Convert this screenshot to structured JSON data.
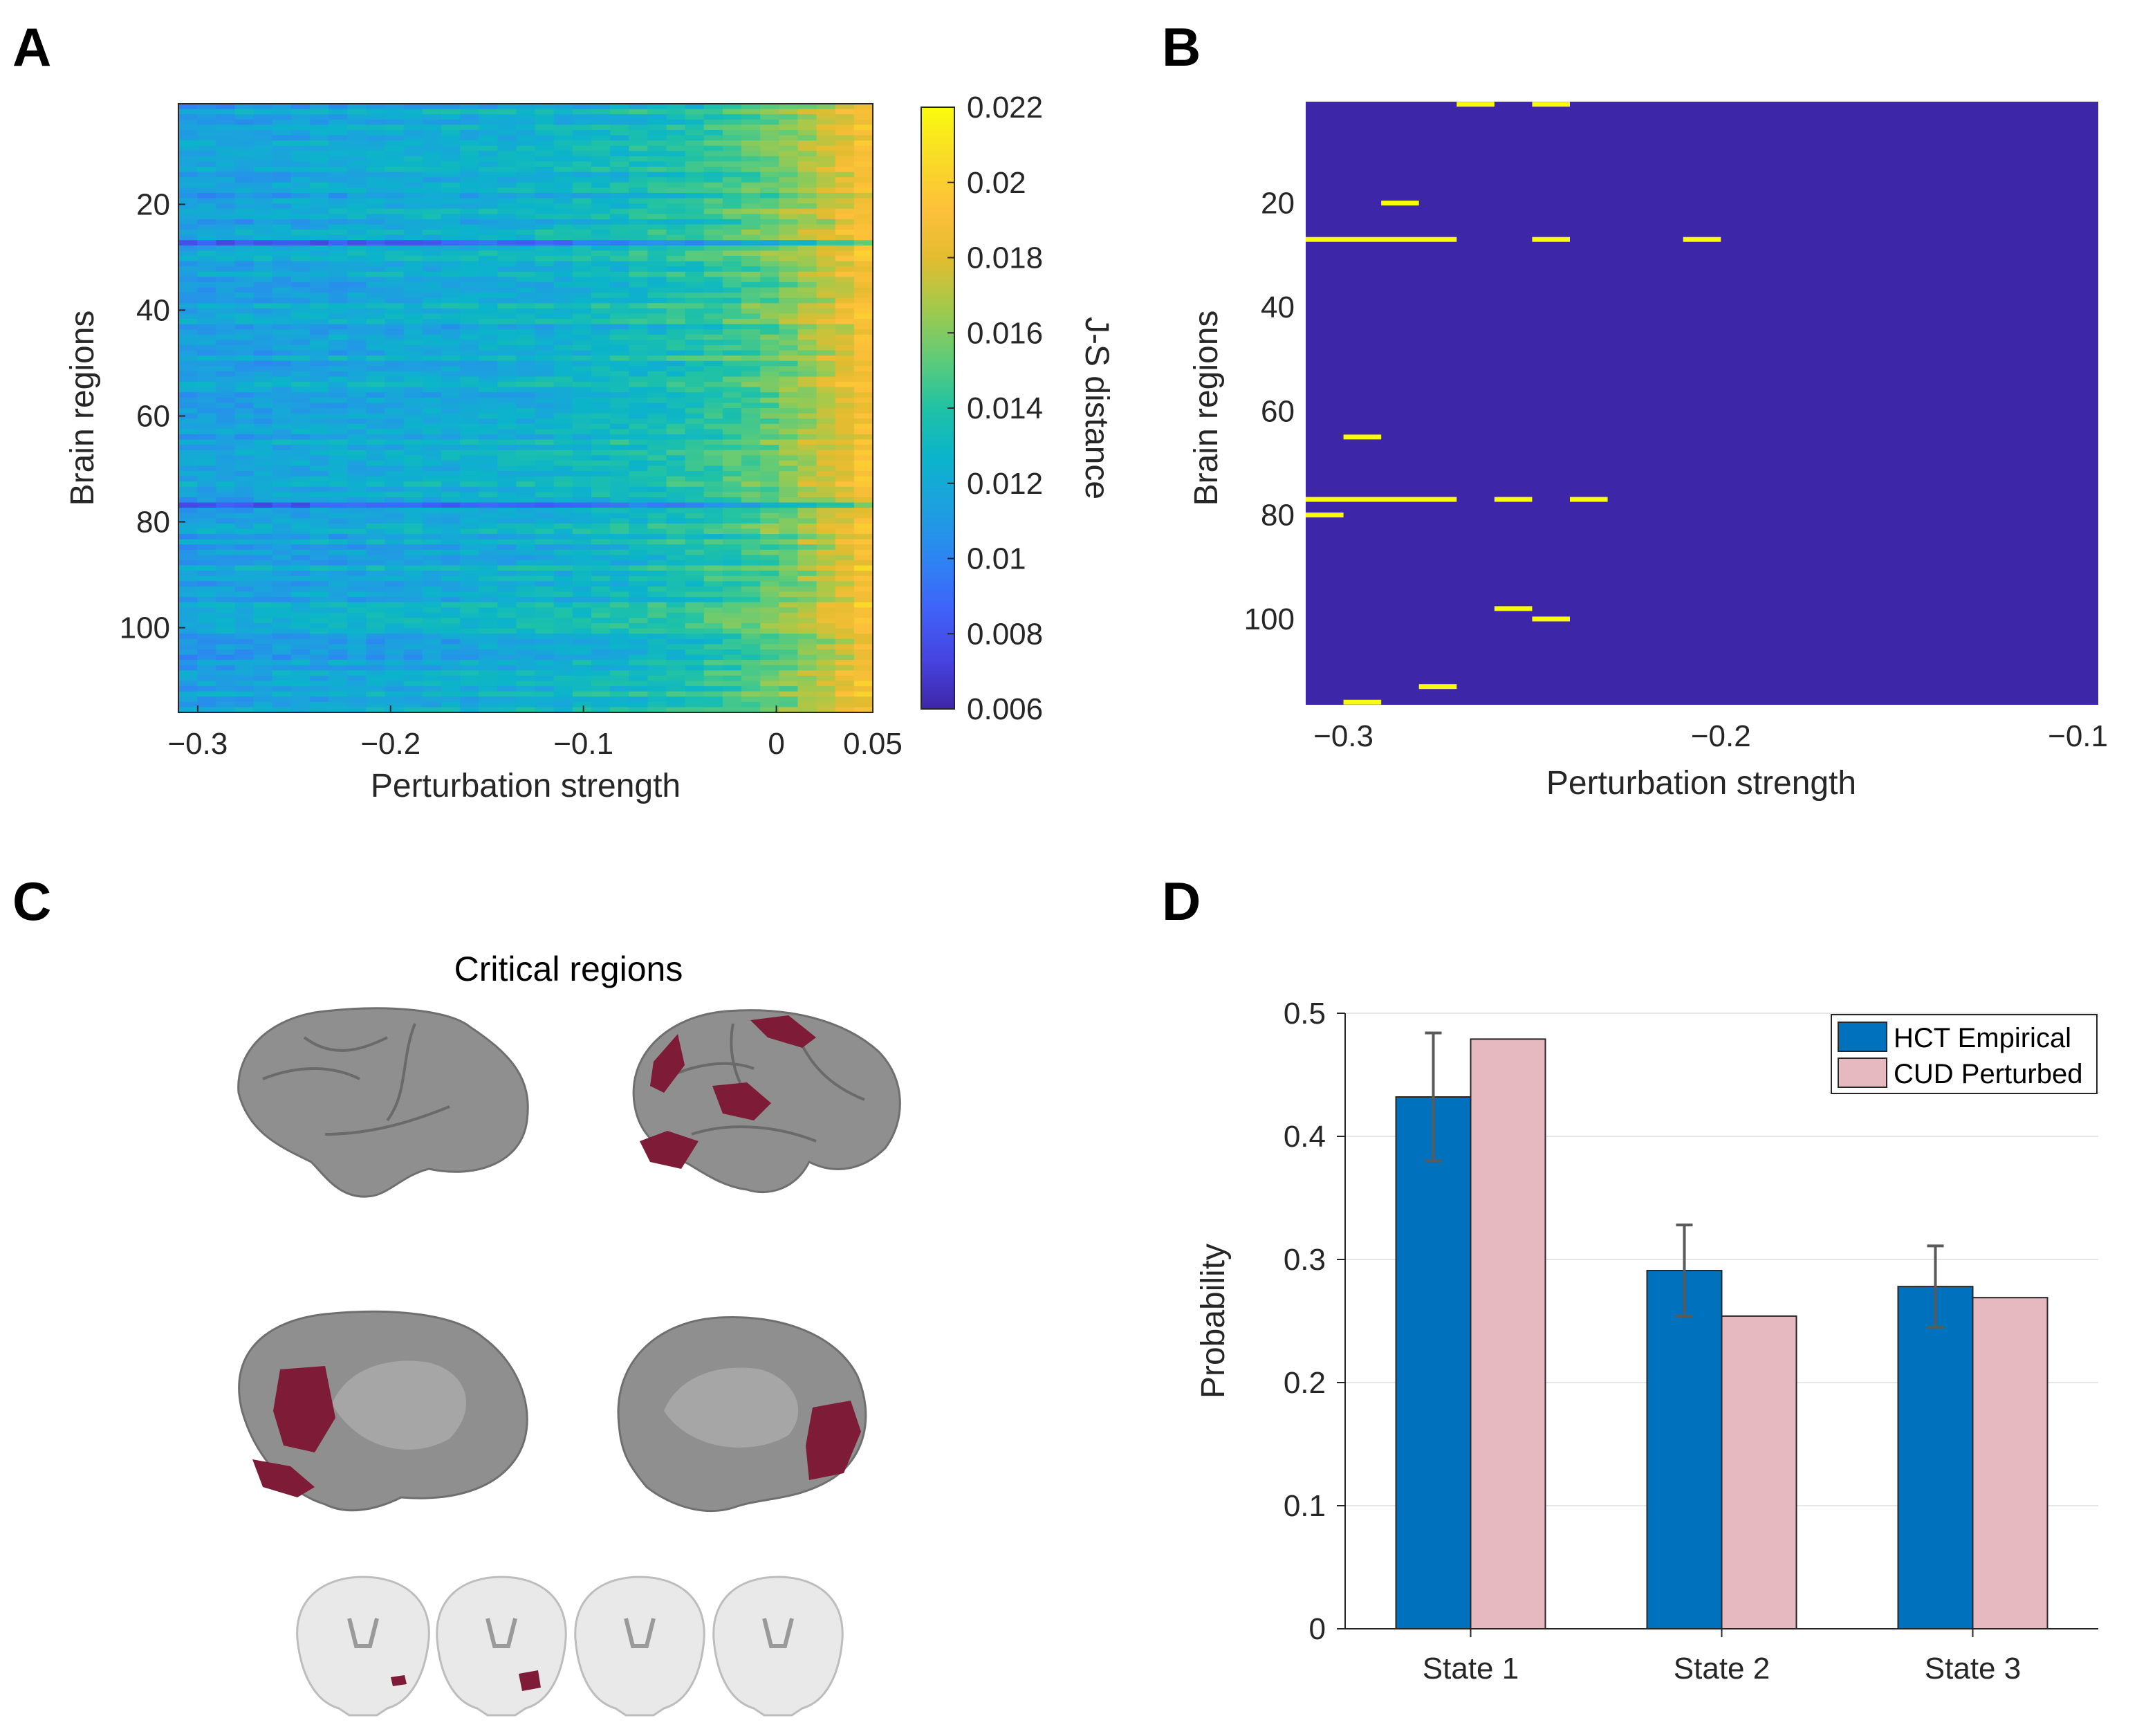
{
  "panels": {
    "a": "A",
    "b": "B",
    "c": "C",
    "d": "D"
  },
  "colors": {
    "parula": [
      "#3e26a8",
      "#4743e0",
      "#3f64f9",
      "#2d85f2",
      "#1e9fe0",
      "#0bb4ca",
      "#20c2a5",
      "#5ecb79",
      "#a6c94a",
      "#e3bc30",
      "#fdc03a",
      "#f9dd26",
      "#f9fb0e"
    ],
    "hct": "#0072bd",
    "cud": "#e6b8bf",
    "cortex": "#8f8f8f",
    "critical": "#7e1c37",
    "slice": "#e9e9e9"
  },
  "chart_data": [
    {
      "id": "A",
      "type": "heatmap",
      "title": "",
      "xlabel": "Perturbation strength",
      "ylabel": "Brain regions",
      "xlim": [
        -0.31,
        0.05
      ],
      "ylim": [
        116,
        1
      ],
      "xticks": [
        -0.3,
        -0.2,
        -0.1,
        0,
        0.05
      ],
      "xtick_labels": [
        "−0.3",
        "−0.2",
        "−0.1",
        "0",
        "0.05"
      ],
      "yticks": [
        20,
        40,
        60,
        80,
        100
      ],
      "ytick_labels": [
        "20",
        "40",
        "60",
        "80",
        "100"
      ],
      "n_regions": 116,
      "n_steps": 37,
      "colorbar": {
        "label": "J-S distance",
        "range": [
          0.006,
          0.022
        ],
        "ticks": [
          "0.006",
          "0.008",
          "0.01",
          "0.012",
          "0.014",
          "0.016",
          "0.018",
          "0.02",
          "0.022"
        ]
      }
    },
    {
      "id": "B",
      "type": "heatmap",
      "xlabel": "Perturbation strength",
      "ylabel": "Brain regions",
      "xlim": [
        -0.31,
        -0.1
      ],
      "ylim": [
        116,
        1
      ],
      "xticks": [
        -0.3,
        -0.2,
        -0.1
      ],
      "xtick_labels": [
        "−0.3",
        "−0.2",
        "−0.1"
      ],
      "yticks": [
        20,
        40,
        60,
        80,
        100
      ],
      "ytick_labels": [
        "20",
        "40",
        "60",
        "80",
        "100"
      ],
      "highlighted_segments": [
        {
          "region": 1,
          "x0": -0.27,
          "x1": -0.26
        },
        {
          "region": 1,
          "x0": -0.25,
          "x1": -0.24
        },
        {
          "region": 20,
          "x0": -0.29,
          "x1": -0.28
        },
        {
          "region": 27,
          "x0": -0.31,
          "x1": -0.27
        },
        {
          "region": 27,
          "x0": -0.25,
          "x1": -0.24
        },
        {
          "region": 27,
          "x0": -0.21,
          "x1": -0.2
        },
        {
          "region": 65,
          "x0": -0.3,
          "x1": -0.29
        },
        {
          "region": 77,
          "x0": -0.31,
          "x1": -0.27
        },
        {
          "region": 77,
          "x0": -0.26,
          "x1": -0.25
        },
        {
          "region": 77,
          "x0": -0.24,
          "x1": -0.23
        },
        {
          "region": 80,
          "x0": -0.31,
          "x1": -0.3
        },
        {
          "region": 98,
          "x0": -0.26,
          "x1": -0.25
        },
        {
          "region": 100,
          "x0": -0.25,
          "x1": -0.24
        },
        {
          "region": 113,
          "x0": -0.28,
          "x1": -0.27
        },
        {
          "region": 116,
          "x0": -0.3,
          "x1": -0.29
        }
      ]
    },
    {
      "id": "D",
      "type": "bar",
      "ylabel": "Probability",
      "categories": [
        "State 1",
        "State 2",
        "State 3"
      ],
      "ylim": [
        0,
        0.5
      ],
      "yticks": [
        0,
        0.1,
        0.2,
        0.3,
        0.4,
        0.5
      ],
      "ytick_labels": [
        "0",
        "0.1",
        "0.2",
        "0.3",
        "0.4",
        "0.5"
      ],
      "series": [
        {
          "name": "HCT Empirical",
          "values": [
            0.432,
            0.291,
            0.278
          ],
          "errors": [
            0.052,
            0.037,
            0.033
          ]
        },
        {
          "name": "CUD Perturbed",
          "values": [
            0.479,
            0.254,
            0.269
          ]
        }
      ],
      "legend_position": "top-right"
    }
  ],
  "brain": {
    "title": "Critical regions"
  }
}
